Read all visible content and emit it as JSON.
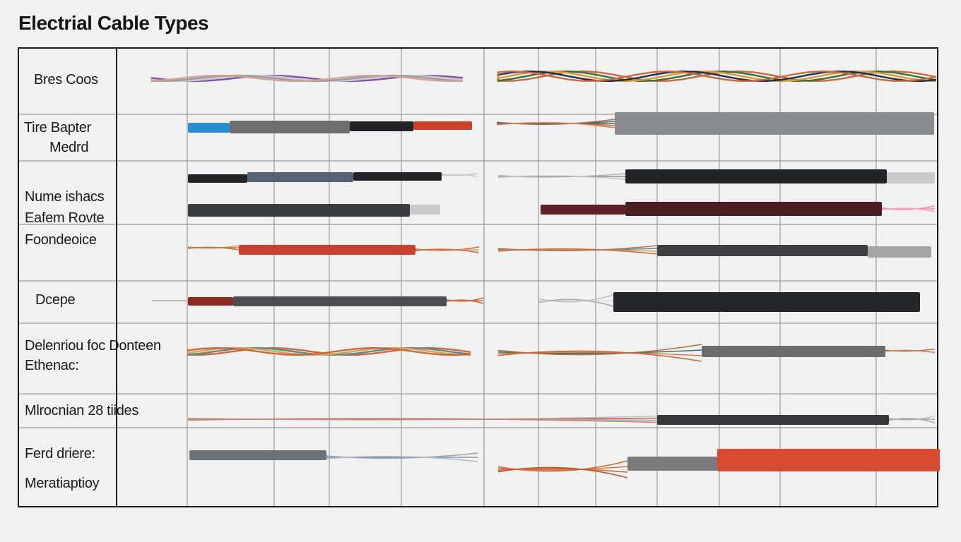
{
  "title": "Electrial Cable Types",
  "rows": [
    {
      "label_lines": [
        "Bres Coos"
      ]
    },
    {
      "label_lines": [
        "Tire Bapter",
        "Medrd"
      ]
    },
    {
      "label_lines": [
        "Nume ishacs",
        "Eafem Rovte",
        "Foondeoice"
      ]
    },
    {
      "label_lines": [
        "Dcepe"
      ]
    },
    {
      "label_lines": [
        "Delenriou foc Donteen",
        "Ethenac:"
      ]
    },
    {
      "label_lines": [
        "Mlrocnian 28 tiides"
      ]
    },
    {
      "label_lines": [
        "Ferd driere:",
        "Meratiaptioy"
      ]
    }
  ],
  "colors": {
    "grid": "#9a9a9a",
    "frame": "#1a1a1a",
    "copper": "#c86a3e",
    "red_jacket": "#c9412b",
    "black_jacket": "#232427",
    "grey_jacket": "#8b8c8f",
    "blue_jacket": "#2a8fd0",
    "purple": "#7a4fb5",
    "green": "#3c6e3a",
    "maroon": "#5a2226",
    "pink": "#f08bb0",
    "silver": "#c9cacc"
  }
}
